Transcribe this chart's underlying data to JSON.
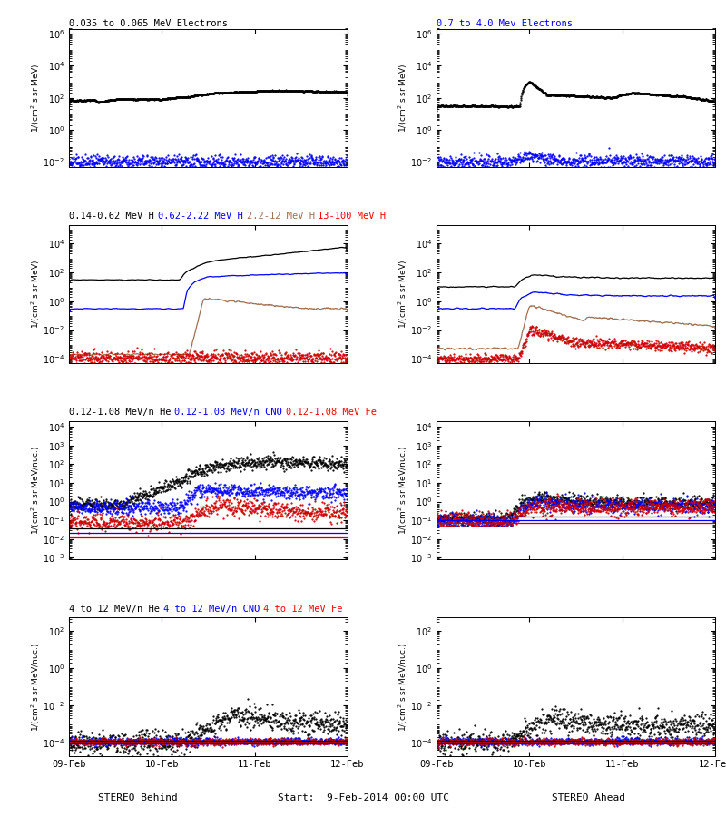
{
  "titles_row0": [
    "0.035 to 0.065 MeV Electrons",
    "0.7 to 4.0 Mev Electrons"
  ],
  "titles_row0_colors": [
    "black",
    "blue"
  ],
  "titles_row1": [
    "0.14-0.62 MeV H",
    "0.62-2.22 MeV H",
    "2.2-12 MeV H",
    "13-100 MeV H"
  ],
  "titles_row1_colors": [
    "black",
    "blue",
    "brown",
    "red"
  ],
  "titles_row2": [
    "0.12-1.08 MeV/n He",
    "0.12-1.08 MeV/n CNO",
    "0.12-1.08 MeV Fe"
  ],
  "titles_row2_colors": [
    "black",
    "blue",
    "red"
  ],
  "titles_row3": [
    "4 to 12 MeV/n He",
    "4 to 12 MeV/n CNO",
    "4 to 12 MeV Fe"
  ],
  "titles_row3_colors": [
    "black",
    "blue",
    "red"
  ],
  "xlabel_left": "STEREO Behind",
  "xlabel_right": "STEREO Ahead",
  "xlabel_center": "Start:  9-Feb-2014 00:00 UTC",
  "xtick_labels": [
    "09-Feb",
    "10-Feb",
    "11-Feb",
    "12-Feb"
  ],
  "colors": {
    "black": "#000000",
    "blue": "#0000ff",
    "brown": "#a07050",
    "red": "#cc0000"
  },
  "ndays": 3,
  "seed": 42
}
